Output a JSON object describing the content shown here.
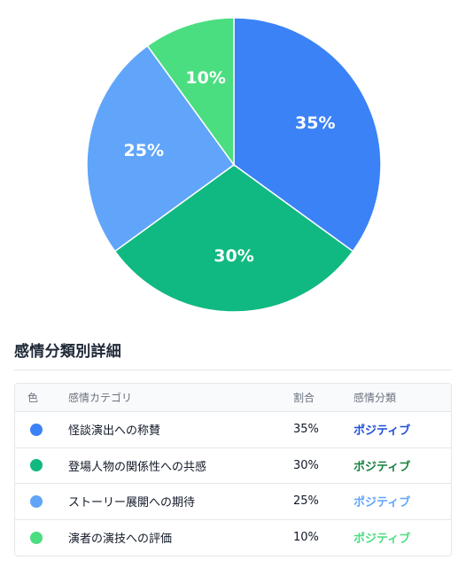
{
  "chart_data": {
    "type": "pie",
    "categories": [
      "怪談演出への称賛",
      "登場人物の関係性への共感",
      "ストーリー展開への期待",
      "演者の演技への評価"
    ],
    "values": [
      35,
      30,
      25,
      10
    ],
    "value_labels": [
      "35%",
      "30%",
      "25%",
      "10%"
    ],
    "colors": [
      "#3b82f6",
      "#10b981",
      "#60a5fa",
      "#4ade80"
    ],
    "start_angle_deg": 0,
    "direction": "clockwise"
  },
  "section": {
    "title": "感情分類別詳細"
  },
  "table": {
    "headers": {
      "color": "色",
      "category": "感情カテゴリ",
      "ratio": "割合",
      "classification": "感情分類"
    },
    "rows": [
      {
        "color": "#3b82f6",
        "category": "怪談演出への称賛",
        "ratio": "35%",
        "classification": "ポジティブ",
        "class_color": "#1d4ed8"
      },
      {
        "color": "#10b981",
        "category": "登場人物の関係性への共感",
        "ratio": "30%",
        "classification": "ポジティブ",
        "class_color": "#15803d"
      },
      {
        "color": "#60a5fa",
        "category": "ストーリー展開への期待",
        "ratio": "25%",
        "classification": "ポジティブ",
        "class_color": "#60a5fa"
      },
      {
        "color": "#4ade80",
        "category": "演者の演技への評価",
        "ratio": "10%",
        "classification": "ポジティブ",
        "class_color": "#4ade80"
      }
    ]
  }
}
